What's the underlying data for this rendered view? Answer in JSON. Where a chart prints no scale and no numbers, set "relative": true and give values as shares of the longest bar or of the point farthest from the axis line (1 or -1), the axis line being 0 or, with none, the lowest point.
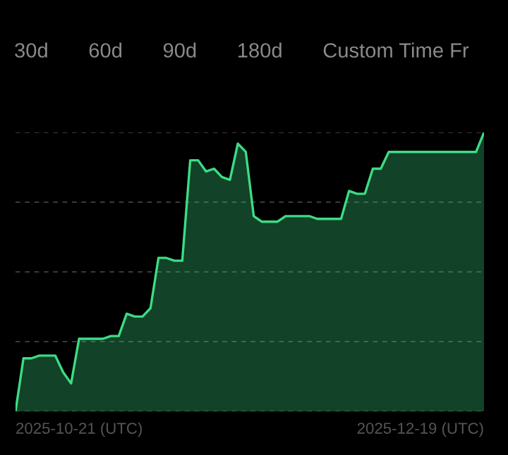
{
  "chart_data": {
    "type": "area",
    "relative": true,
    "grid": "y",
    "annotations": [
      "30d",
      "60d",
      "90d",
      "180d",
      "Custom Time Fr",
      "2025-10-21 (UTC)",
      "2025-12-19 (UTC)"
    ],
    "categories": [
      null,
      null,
      null,
      null,
      null,
      null,
      null,
      null,
      null,
      null,
      null,
      null,
      null,
      null,
      null,
      null,
      null,
      null,
      null,
      null,
      null,
      null,
      null,
      null,
      null,
      null,
      null,
      null,
      null,
      null,
      null,
      null,
      null,
      null,
      null,
      null,
      null,
      null,
      null,
      null,
      null,
      null,
      null,
      null,
      null,
      null,
      null,
      null,
      null,
      null,
      null,
      null,
      null,
      null,
      null,
      null,
      null,
      null,
      null,
      null
    ],
    "series": [
      {
        "color": "#3ddc84",
        "values": [
          0,
          0.19,
          0.19,
          0.2,
          0.2,
          0.2,
          0.14,
          0.1,
          0.26,
          0.26,
          0.26,
          0.26,
          0.27,
          0.27,
          0.35,
          0.34,
          0.34,
          0.37,
          0.55,
          0.55,
          0.54,
          0.54,
          0.9,
          0.9,
          0.86,
          0.87,
          0.84,
          0.83,
          0.96,
          0.93,
          0.7,
          0.68,
          0.68,
          0.68,
          0.7,
          0.7,
          0.7,
          0.7,
          0.69,
          0.69,
          0.69,
          0.69,
          0.79,
          0.78,
          0.78,
          0.87,
          0.87,
          0.93,
          0.93,
          0.93,
          0.93,
          0.93,
          0.93,
          0.93,
          0.93,
          0.93,
          0.93,
          0.93,
          0.93,
          1
        ]
      }
    ]
  }
}
